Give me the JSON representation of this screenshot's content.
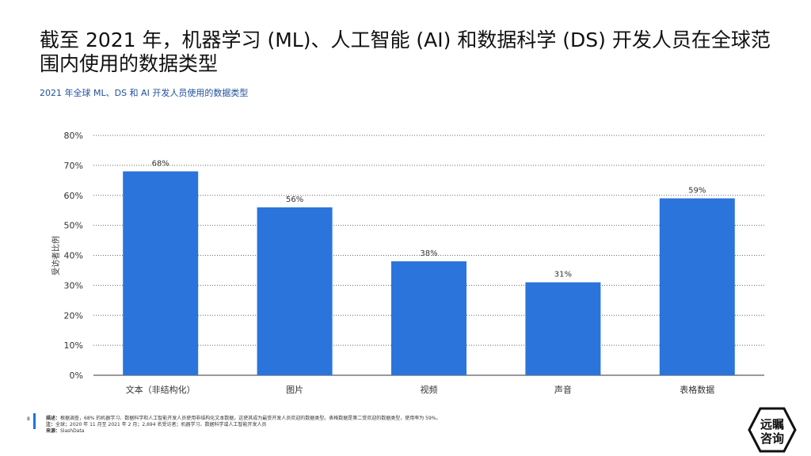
{
  "title": "截至 2021 年，机器学习 (ML)、人工智能 (AI) 和数据科学 (DS) 开发人员在全球范围内使用的数据类型",
  "subtitle": "2021 年全球 ML、DS 和 AI 开发人员使用的数据类型",
  "footer": {
    "page_number": "8",
    "description_label": "描述：",
    "description": "根据调查，68% 的机器学习、数据科学和人工智能开发人员使用非结构化文本数据，这使其成为最受开发人员欢迎的数据类型。表格数据是第二受欢迎的数据类型，使用率为 59%。",
    "note_label": "注：",
    "note": "全球；2020 年 11 月至 2021 年 2 月；2,694 名受访者；机器学习、数据科学或人工智能开发人员",
    "source_label": "来源：",
    "source": "SlashData"
  },
  "logo": {
    "text": "远瞩咨询"
  },
  "colors": {
    "bar": "#2a74dc",
    "accent": "#1a73e8"
  },
  "chart_data": {
    "type": "bar",
    "categories": [
      "文本（非结构化）",
      "图片",
      "视频",
      "声音",
      "表格数据"
    ],
    "values": [
      68,
      56,
      38,
      31,
      59
    ],
    "data_labels": [
      "68%",
      "56%",
      "38%",
      "31%",
      "59%"
    ],
    "ylabel": "受访者比例",
    "xlabel": "",
    "ylim": [
      0,
      80
    ],
    "yticks": [
      "0%",
      "10%",
      "20%",
      "30%",
      "40%",
      "50%",
      "60%",
      "70%",
      "80%"
    ],
    "grid": true
  }
}
